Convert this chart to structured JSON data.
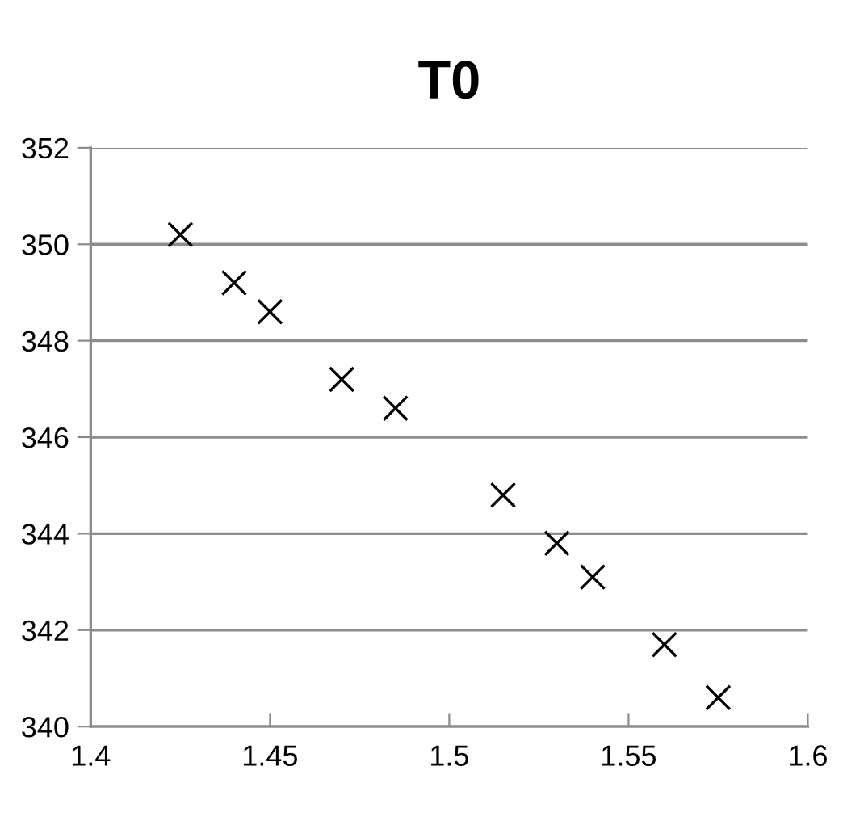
{
  "chart_data": {
    "type": "scatter",
    "title": "T0",
    "x": [
      1.425,
      1.44,
      1.45,
      1.47,
      1.485,
      1.515,
      1.53,
      1.54,
      1.56,
      1.575
    ],
    "values": [
      350.2,
      349.2,
      348.6,
      347.2,
      346.6,
      344.8,
      343.8,
      343.1,
      341.7,
      340.6
    ],
    "color": "#000000",
    "marker": "cross",
    "xlim": [
      1.4,
      1.6
    ],
    "xticks": [
      1.4,
      1.45,
      1.5,
      1.55,
      1.6
    ],
    "ylim": [
      340,
      352
    ],
    "yticks": [
      340,
      342,
      344,
      346,
      348,
      350,
      352
    ],
    "grid": "y",
    "legend": false
  }
}
